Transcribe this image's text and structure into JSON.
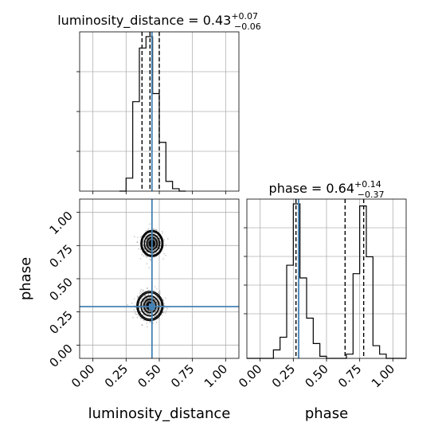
{
  "chart_data": {
    "type": "corner",
    "truth_color": "#4682b4",
    "parameters": [
      {
        "name": "luminosity_distance",
        "axis_label": "luminosity_distance",
        "range": [
          -0.1,
          1.1
        ],
        "ticks": [
          "0.00",
          "0.25",
          "0.50",
          "0.75",
          "1.00"
        ],
        "tick_values": [
          0.0,
          0.25,
          0.5,
          0.75,
          1.0
        ],
        "title": {
          "prefix": "luminosity_distance = ",
          "value": "0.43",
          "plus": "+0.07",
          "minus": "−0.06"
        },
        "truth": 0.445,
        "quantiles": [
          0.37,
          0.43,
          0.5
        ],
        "histogram": {
          "bins": [
            0.2,
            0.25,
            0.3,
            0.35,
            0.4,
            0.45,
            0.5,
            0.55,
            0.6,
            0.65,
            0.7
          ],
          "counts": [
            0.0,
            0.08,
            0.55,
            0.88,
            0.95,
            0.6,
            0.3,
            0.06,
            0.015,
            0.0
          ]
        }
      },
      {
        "name": "phase",
        "axis_label": "phase",
        "range": [
          -0.1,
          1.1
        ],
        "ticks": [
          "0.00",
          "0.25",
          "0.50",
          "0.75",
          "1.00"
        ],
        "tick_values": [
          0.0,
          0.25,
          0.5,
          0.75,
          1.0
        ],
        "title": {
          "prefix": "phase = ",
          "value": "0.64",
          "plus": "+0.14",
          "minus": "−0.37"
        },
        "truth": 0.29,
        "quantiles": [
          0.27,
          0.64,
          0.78
        ],
        "histogram": {
          "bins": [
            -0.1,
            -0.05,
            0.0,
            0.05,
            0.1,
            0.15,
            0.2,
            0.25,
            0.3,
            0.35,
            0.4,
            0.45,
            0.5,
            0.55,
            0.6,
            0.65,
            0.7,
            0.75,
            0.8,
            0.85,
            0.9,
            0.95,
            1.0,
            1.05,
            1.1
          ],
          "counts": [
            0,
            0,
            0,
            0,
            0.04,
            0.1,
            0.44,
            0.73,
            0.38,
            0.19,
            0.07,
            0.01,
            0,
            0,
            0,
            0.02,
            0.4,
            0.72,
            0.48,
            0.06,
            0.02,
            0,
            0,
            0
          ]
        }
      }
    ],
    "joint": {
      "x_param": "luminosity_distance",
      "y_param": "phase",
      "modes": [
        {
          "x": 0.445,
          "y": 0.765,
          "sx": 0.038,
          "sy": 0.045
        },
        {
          "x": 0.43,
          "y": 0.295,
          "sx": 0.045,
          "sy": 0.05
        }
      ],
      "contour_levels": 4,
      "grid": true
    },
    "grid": true
  }
}
